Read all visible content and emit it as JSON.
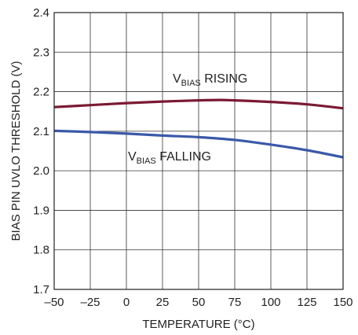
{
  "chart_data": {
    "type": "line",
    "xlabel": "TEMPERATURE (°C)",
    "ylabel": "BIAS PIN UVLO THRESHOLD (V)",
    "xlim": [
      -50,
      150
    ],
    "ylim": [
      1.7,
      2.4
    ],
    "xticks": [
      -50,
      -25,
      0,
      25,
      50,
      75,
      100,
      125,
      150
    ],
    "yticks": [
      1.7,
      1.8,
      1.9,
      2.0,
      2.1,
      2.2,
      2.3,
      2.4
    ],
    "xtick_labels": [
      "–50",
      "–25",
      "0",
      "25",
      "50",
      "75",
      "100",
      "125",
      "150"
    ],
    "ytick_labels": [
      "1.7",
      "1.8",
      "1.9",
      "2.0",
      "2.1",
      "2.2",
      "2.3",
      "2.4"
    ],
    "grid": true,
    "series": [
      {
        "name": "VBIAS RISING",
        "label_main": "V",
        "label_sub": "BIAS",
        "label_rest": " RISING",
        "color": "#7b1a33",
        "x": [
          -50,
          -25,
          0,
          25,
          50,
          65,
          75,
          100,
          125,
          150
        ],
        "y": [
          2.161,
          2.166,
          2.171,
          2.175,
          2.178,
          2.179,
          2.178,
          2.174,
          2.168,
          2.158
        ]
      },
      {
        "name": "VBIAS FALLING",
        "label_main": "V",
        "label_sub": "BIAS",
        "label_rest": " FALLING",
        "color": "#3a59a8",
        "x": [
          -50,
          -25,
          0,
          25,
          50,
          75,
          100,
          125,
          150
        ],
        "y": [
          2.101,
          2.098,
          2.094,
          2.089,
          2.085,
          2.078,
          2.066,
          2.052,
          2.034
        ]
      }
    ]
  }
}
